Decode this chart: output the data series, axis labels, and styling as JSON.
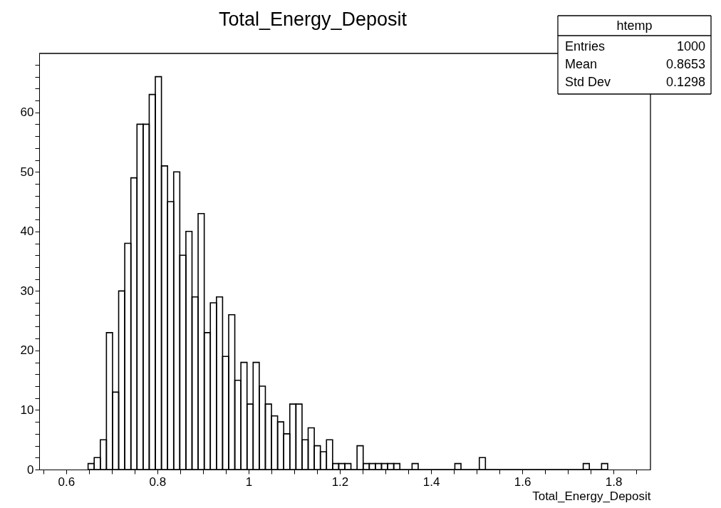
{
  "chart_data": {
    "type": "histogram",
    "title": "Total_Energy_Deposit",
    "xlabel": "Total_Energy_Deposit",
    "bins": [
      0.6482,
      0.6616,
      0.675,
      0.6884,
      0.7018,
      0.7152,
      0.7286,
      0.742,
      0.7554,
      0.7688,
      0.7822,
      0.7956,
      0.809,
      0.8224,
      0.8358,
      0.8492,
      0.8626,
      0.876,
      0.8894,
      0.9028,
      0.9162,
      0.9296,
      0.943,
      0.9564,
      0.9698,
      0.9832,
      0.9966,
      1.01,
      1.0234,
      1.0368,
      1.0502,
      1.0636,
      1.077,
      1.0904,
      1.1038,
      1.1172,
      1.1306,
      1.144,
      1.1574,
      1.1708,
      1.1842,
      1.1976,
      1.211,
      1.2244,
      1.2378,
      1.2512,
      1.2646,
      1.278,
      1.2914,
      1.3048,
      1.3182,
      1.3316,
      1.3584,
      1.3718,
      1.4522,
      1.4656,
      1.5058,
      1.5192,
      1.7336,
      1.747,
      1.7738,
      1.7872
    ],
    "values": [
      1,
      2,
      5,
      23,
      13,
      30,
      38,
      49,
      58,
      58,
      63,
      66,
      51,
      45,
      50,
      36,
      40,
      29,
      43,
      23,
      28,
      29,
      19,
      26,
      15,
      18,
      11,
      18,
      14,
      11,
      9,
      8,
      6,
      11,
      11,
      5,
      7,
      4,
      3,
      5,
      1,
      1,
      1,
      0,
      4,
      1,
      1,
      1,
      1,
      1,
      1,
      0,
      1,
      0,
      1,
      0,
      2,
      0,
      1,
      0,
      1
    ],
    "color": "#000000",
    "xlim": [
      0.541,
      1.881
    ],
    "ylim": [
      0,
      69.9
    ],
    "xticks": [
      {
        "value": 0.55,
        "label": null
      },
      0.6,
      {
        "value": 0.65,
        "label": null
      },
      {
        "value": 0.7,
        "label": null
      },
      {
        "value": 0.75,
        "label": null
      },
      0.8,
      {
        "value": 0.85,
        "label": null
      },
      {
        "value": 0.9,
        "label": null
      },
      {
        "value": 0.95,
        "label": null
      },
      1,
      {
        "value": 1.05,
        "label": null
      },
      {
        "value": 1.1,
        "label": null
      },
      {
        "value": 1.15,
        "label": null
      },
      1.2,
      {
        "value": 1.25,
        "label": null
      },
      {
        "value": 1.3,
        "label": null
      },
      {
        "value": 1.35,
        "label": null
      },
      1.4,
      {
        "value": 1.45,
        "label": null
      },
      {
        "value": 1.5,
        "label": null
      },
      {
        "value": 1.55,
        "label": null
      },
      1.6,
      {
        "value": 1.65,
        "label": null
      },
      {
        "value": 1.7,
        "label": null
      },
      {
        "value": 1.75,
        "label": null
      },
      1.8,
      {
        "value": 1.85,
        "label": null
      }
    ],
    "yticks": [
      0,
      {
        "value": 2,
        "label": null
      },
      {
        "value": 4,
        "label": null
      },
      {
        "value": 6,
        "label": null
      },
      {
        "value": 8,
        "label": null
      },
      10,
      {
        "value": 12,
        "label": null
      },
      {
        "value": 14,
        "label": null
      },
      {
        "value": 16,
        "label": null
      },
      {
        "value": 18,
        "label": null
      },
      20,
      {
        "value": 22,
        "label": null
      },
      {
        "value": 24,
        "label": null
      },
      {
        "value": 26,
        "label": null
      },
      {
        "value": 28,
        "label": null
      },
      30,
      {
        "value": 32,
        "label": null
      },
      {
        "value": 34,
        "label": null
      },
      {
        "value": 36,
        "label": null
      },
      {
        "value": 38,
        "label": null
      },
      40,
      {
        "value": 42,
        "label": null
      },
      {
        "value": 44,
        "label": null
      },
      {
        "value": 46,
        "label": null
      },
      {
        "value": 48,
        "label": null
      },
      50,
      {
        "value": 52,
        "label": null
      },
      {
        "value": 54,
        "label": null
      },
      {
        "value": 56,
        "label": null
      },
      {
        "value": 58,
        "label": null
      },
      60,
      {
        "value": 62,
        "label": null
      },
      {
        "value": 64,
        "label": null
      },
      {
        "value": 66,
        "label": null
      },
      {
        "value": 68,
        "label": null
      }
    ],
    "grid": false,
    "annotations": [
      "htemp",
      "Entries",
      "1000",
      "Mean",
      "0.8653",
      "Std Dev",
      "0.1298"
    ]
  }
}
